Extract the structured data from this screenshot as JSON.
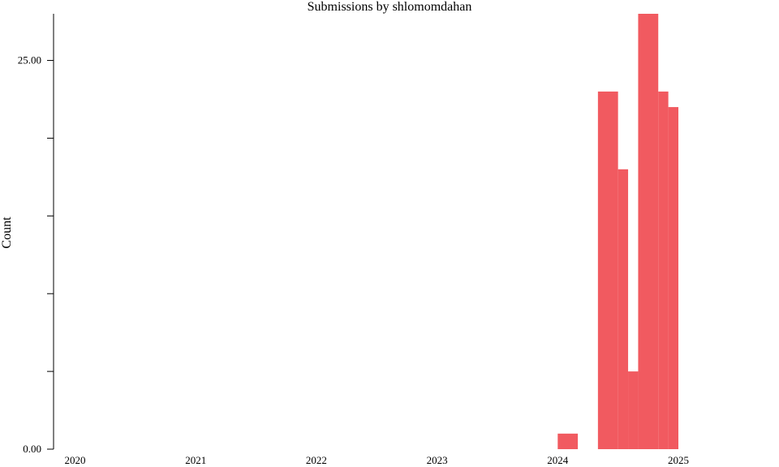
{
  "chart_data": {
    "type": "bar",
    "title": "Submissions by shlomomdahan",
    "xlabel": "",
    "ylabel": "Count",
    "x_ticks": [
      "2020",
      "2021",
      "2022",
      "2023",
      "2024",
      "2025"
    ],
    "y_tick_labels": [
      "0.00",
      "25.00"
    ],
    "y_minor_ticks": [
      5,
      10,
      15,
      20
    ],
    "ylim": [
      0,
      28
    ],
    "xlim": [
      "2019-09",
      "2025-09"
    ],
    "color": "#f15a60",
    "series": [
      {
        "bars": [
          {
            "start": "2024-01",
            "end": "2024-03",
            "value": 1
          },
          {
            "start": "2024-05",
            "end": "2024-07",
            "value": 23
          },
          {
            "start": "2024-07",
            "end": "2024-08",
            "value": 18
          },
          {
            "start": "2024-08",
            "end": "2024-09",
            "value": 5
          },
          {
            "start": "2024-09",
            "end": "2024-11",
            "value": 28
          },
          {
            "start": "2024-11",
            "end": "2024-12",
            "value": 23
          },
          {
            "start": "2024-12",
            "end": "2025-01",
            "value": 22
          }
        ]
      }
    ]
  }
}
